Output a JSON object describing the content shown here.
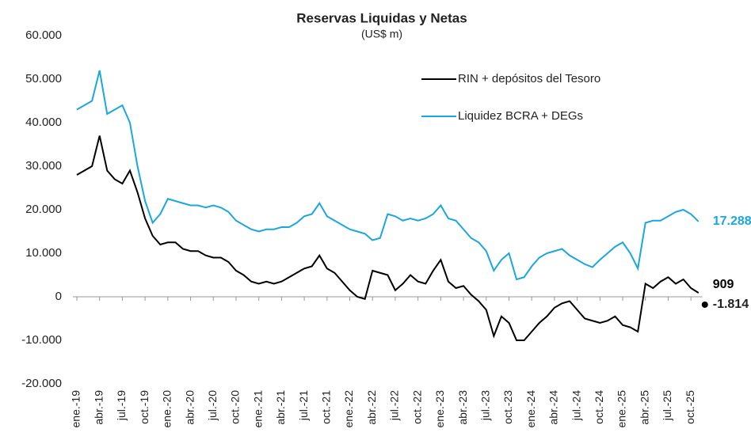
{
  "chart_data": {
    "type": "line",
    "title": "Reservas Liquidas y Netas",
    "subtitle": "(US$ m)",
    "categories": [
      "ene.-19",
      null,
      null,
      "abr.-19",
      null,
      null,
      "jul.-19",
      null,
      null,
      "oct.-19",
      null,
      null,
      "ene.-20",
      null,
      null,
      "abr.-20",
      null,
      null,
      "jul.-20",
      null,
      null,
      "oct.-20",
      null,
      null,
      "ene.-21",
      null,
      null,
      "abr.-21",
      null,
      null,
      "jul.-21",
      null,
      null,
      "oct.-21",
      null,
      null,
      "ene.-22",
      null,
      null,
      "abr.-22",
      null,
      null,
      "jul.-22",
      null,
      null,
      "oct.-22",
      null,
      null,
      "ene.-23",
      null,
      null,
      "abr.-23",
      null,
      null,
      "jul.-23",
      null,
      null,
      "oct.-23",
      null,
      null,
      "ene.-24",
      null,
      null,
      "abr.-24",
      null,
      null,
      "jul.-24",
      null,
      null,
      "oct.-24",
      null,
      null,
      "ene.-25",
      null,
      null,
      "abr.-25",
      null,
      null,
      "jul.-25",
      null,
      null,
      "oct.-25",
      null
    ],
    "series": [
      {
        "name": "RIN + depósitos del Tesoro",
        "color": "#000000",
        "end_label": "909",
        "values": [
          28000,
          29000,
          30000,
          37000,
          29000,
          27000,
          26000,
          29000,
          24000,
          18000,
          14000,
          12000,
          12500,
          12500,
          11000,
          10500,
          10500,
          9500,
          9000,
          9000,
          8000,
          6000,
          5000,
          3500,
          3000,
          3500,
          3000,
          3500,
          4500,
          5500,
          6500,
          7000,
          9500,
          6500,
          5500,
          3500,
          1500,
          0,
          -500,
          6000,
          5500,
          5000,
          1500,
          3000,
          5000,
          3500,
          3000,
          6000,
          8500,
          3500,
          2000,
          2500,
          500,
          -1000,
          -3000,
          -9000,
          -4500,
          -6000,
          -10000,
          -10000,
          -8000,
          -6000,
          -4500,
          -2500,
          -1500,
          -1000,
          -3000,
          -5000,
          -5500,
          -6000,
          -5500,
          -4500,
          -6500,
          -7000,
          -8000,
          3000,
          2000,
          3500,
          4500,
          3000,
          4000,
          2000,
          909
        ]
      },
      {
        "name": "Liquidez BCRA + DEGs",
        "color": "#1aa7e0",
        "end_label": "17.288",
        "values": [
          43000,
          44000,
          45000,
          52000,
          42000,
          43000,
          44000,
          40000,
          30000,
          22000,
          17000,
          19000,
          22500,
          22000,
          21500,
          21000,
          21000,
          20500,
          21000,
          20500,
          19500,
          17500,
          16500,
          15500,
          15000,
          15500,
          15500,
          16000,
          16000,
          17000,
          18500,
          19000,
          21500,
          18500,
          17500,
          16500,
          15500,
          15000,
          14500,
          13000,
          13500,
          19000,
          18500,
          17500,
          18000,
          17500,
          18000,
          19000,
          21000,
          18000,
          17500,
          15500,
          13500,
          12500,
          10500,
          6000,
          8500,
          10000,
          4000,
          4500,
          7000,
          9000,
          10000,
          10500,
          11000,
          9500,
          8500,
          7500,
          6800,
          8500,
          10000,
          11500,
          12500,
          10000,
          6500,
          17000,
          17500,
          17500,
          18500,
          19500,
          20000,
          19000,
          17288
        ]
      }
    ],
    "point": {
      "label": "-1.814",
      "value": -1814,
      "color": "#000000"
    },
    "ylim": [
      -20000,
      60000
    ],
    "yticks": [
      {
        "value": 60000,
        "label": "60.000"
      },
      {
        "value": 50000,
        "label": "50.000"
      },
      {
        "value": 40000,
        "label": "40.000"
      },
      {
        "value": 30000,
        "label": "30.000"
      },
      {
        "value": 20000,
        "label": "20.000"
      },
      {
        "value": 10000,
        "label": "10.000"
      },
      0,
      {
        "value": -10000,
        "label": "-10.000"
      },
      {
        "value": -20000,
        "label": "-20.000"
      }
    ]
  }
}
